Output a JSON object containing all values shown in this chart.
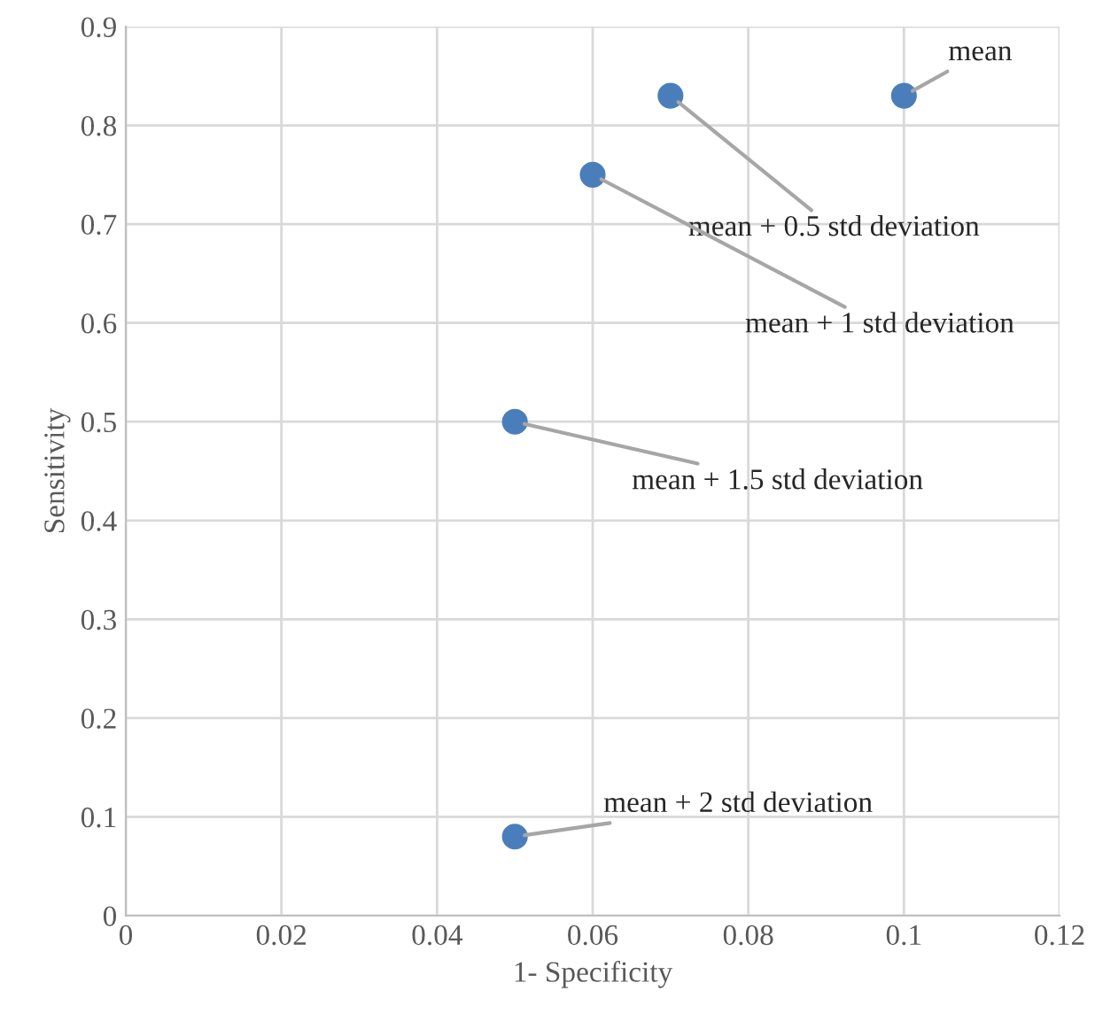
{
  "chart_data": {
    "type": "scatter",
    "xlabel": "1- Specificity",
    "ylabel": "Sensitivity",
    "x": [
      0.1,
      0.07,
      0.06,
      0.05,
      0.05
    ],
    "series": [
      {
        "color": "#4a7ebb",
        "values": [
          0.83,
          0.83,
          0.75,
          0.5,
          0.08
        ]
      }
    ],
    "xlim": [
      0,
      0.12
    ],
    "xticks": [
      0,
      0.02,
      0.04,
      0.06,
      0.08,
      0.1,
      0.12
    ],
    "ylim": [
      0,
      0.9
    ],
    "yticks": [
      0,
      0.1,
      0.2,
      0.3,
      0.4,
      0.5,
      0.6,
      0.7,
      0.8,
      0.9
    ],
    "grid": true,
    "marker": "circle",
    "annotations": [
      {
        "text": "mean",
        "x": 0.1,
        "y": 0.83
      },
      {
        "text": "mean + 0.5 std deviation",
        "x": 0.07,
        "y": 0.83
      },
      {
        "text": "mean + 1 std deviation",
        "x": 0.06,
        "y": 0.75
      },
      {
        "text": "mean + 1.5 std deviation",
        "x": 0.05,
        "y": 0.5
      },
      {
        "text": "mean + 2 std deviation",
        "x": 0.05,
        "y": 0.08
      }
    ]
  }
}
